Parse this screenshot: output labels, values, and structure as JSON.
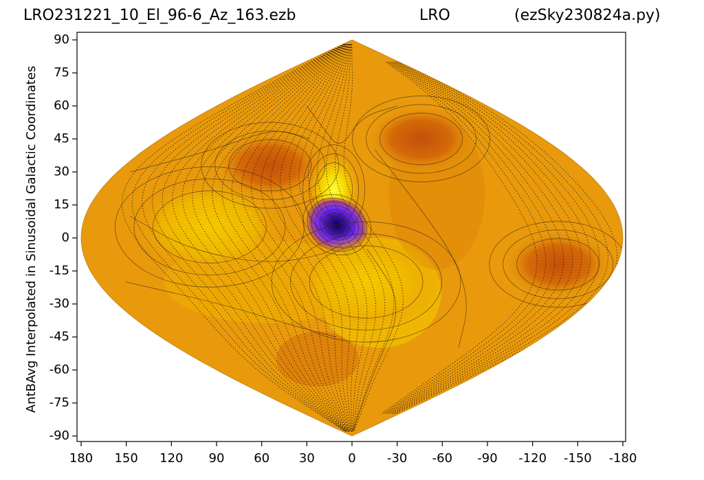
{
  "header": {
    "file_name": "LRO231221_10_El_96-6_Az_163.ezb",
    "station": "LRO",
    "script_name": "(ezSky230824a.py)"
  },
  "chart_data": {
    "type": "heatmap",
    "projection": "sinusoidal",
    "title_left": "LRO231221_10_El_96-6_Az_163.ezb",
    "title_center": "LRO",
    "title_right": "(ezSky230824a.py)",
    "xlabel": "",
    "ylabel": "AntBAvg Interpolated in Sinusoidal Galactic Coordinates",
    "xlim": [
      180,
      -180
    ],
    "ylim": [
      -92,
      92
    ],
    "x_ticks": [
      180,
      150,
      120,
      90,
      60,
      30,
      0,
      -30,
      -60,
      -90,
      -120,
      -150,
      -180
    ],
    "y_ticks": [
      90,
      75,
      60,
      45,
      30,
      15,
      0,
      -15,
      -30,
      -45,
      -60,
      -75,
      -90
    ],
    "colors": {
      "base": "#e89a0c",
      "high": "#f2c200",
      "peak": "#ffff00",
      "low": "#cc5a06",
      "min": "#1a0066",
      "min_ring": "#7a2cff"
    },
    "regions": [
      {
        "lon": 13,
        "lat": 22,
        "level": "peak"
      },
      {
        "lon": 10,
        "lat": 6,
        "level": "min"
      },
      {
        "lon": 95,
        "lat": 5,
        "level": "high"
      },
      {
        "lon": -10,
        "lat": -20,
        "level": "high"
      },
      {
        "lon": 65,
        "lat": 33,
        "level": "low"
      },
      {
        "lon": -65,
        "lat": 45,
        "level": "low"
      },
      {
        "lon": -140,
        "lat": -12,
        "level": "low"
      }
    ]
  }
}
